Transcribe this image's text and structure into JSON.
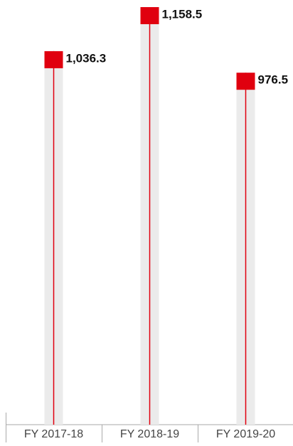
{
  "chart_data": {
    "type": "lollipop",
    "categories": [
      "FY 2017-18",
      "FY 2018-19",
      "FY 2019-20"
    ],
    "values": [
      1036.3,
      1158.5,
      976.5
    ],
    "value_labels": [
      "1,036.3",
      "1,158.5",
      "976.5"
    ],
    "color": "#e0000f",
    "track_color": "#ebebeb"
  }
}
